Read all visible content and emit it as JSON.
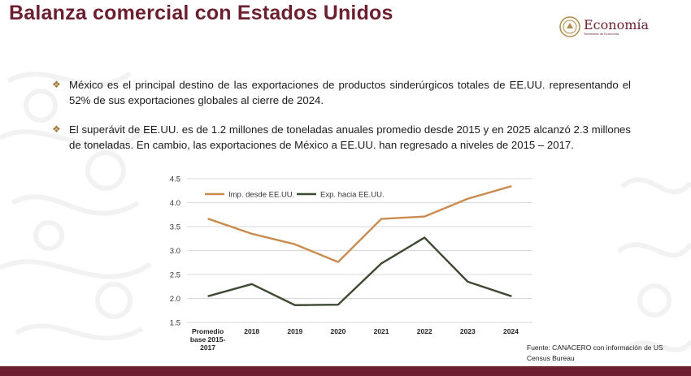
{
  "title": "Balanza comercial con Estados Unidos",
  "logo": {
    "name": "Economía",
    "subtitle": "Secretaría de Economía"
  },
  "bullets": [
    "México es el principal destino de las exportaciones de productos sinderúrgicos totales de EE.UU. representando el 52% de sus exportaciones globales al cierre de 2024.",
    "El superávit de EE.UU. es de 1.2 millones de toneladas anuales promedio desde 2015 y en 2025 alcanzó 2.3 millones de toneladas. En cambio, las exportaciones de México a EE.UU. han regresado a niveles de 2015 – 2017."
  ],
  "bullet_symbol": "❖",
  "source": "Fuente: CANACERO con información de US Census Bureau",
  "colors": {
    "brand": "#6b1f2f",
    "bullet": "#a07a3c",
    "imp": "#c98b4f",
    "exp": "#3e4a34"
  },
  "chart_data": {
    "type": "line",
    "categories": [
      "Promedio base 2015-2017",
      "2018",
      "2019",
      "2020",
      "2021",
      "2022",
      "2023",
      "2024"
    ],
    "series": [
      {
        "name": "Imp. desde EE.UU.",
        "values": [
          3.66,
          3.35,
          3.13,
          2.76,
          3.66,
          3.71,
          4.08,
          4.34
        ]
      },
      {
        "name": "Exp. hacia EE.UU.",
        "values": [
          2.05,
          2.3,
          1.86,
          1.87,
          2.73,
          3.27,
          2.35,
          2.05
        ]
      }
    ],
    "ylim": [
      1.5,
      4.5
    ],
    "yticks": [
      "4.5",
      "4.0",
      "3.5",
      "3.0",
      "2.5",
      "2.0",
      "1.5"
    ],
    "grid": true,
    "legend": "top-left",
    "title": "",
    "xlabel": "",
    "ylabel": ""
  }
}
